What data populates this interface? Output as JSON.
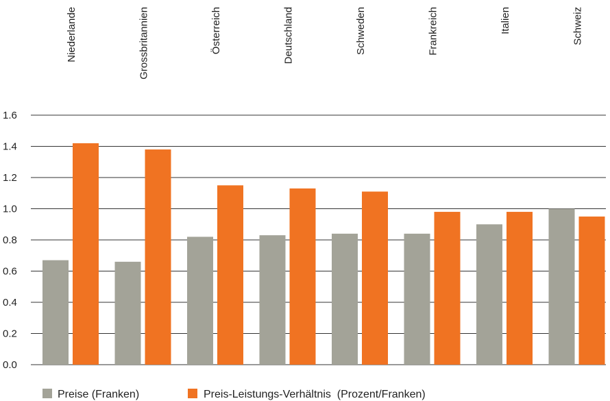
{
  "chart_data": {
    "type": "bar",
    "categories": [
      "Niederlande",
      "Grossbritannien",
      "Österreich",
      "Deutschland",
      "Schweden",
      "Frankreich",
      "Italien",
      "Schweiz"
    ],
    "series": [
      {
        "name": "Preise (Franken)",
        "color": "#a3a398",
        "values": [
          0.67,
          0.66,
          0.82,
          0.83,
          0.84,
          0.84,
          0.9,
          1.0
        ]
      },
      {
        "name": "Preis-Leistungs-Verhältnis  (Prozent/Franken)",
        "color": "#f07322",
        "values": [
          1.42,
          1.38,
          1.15,
          1.13,
          1.11,
          0.98,
          0.98,
          0.95
        ]
      }
    ],
    "yticks": [
      "0.0",
      "0.2",
      "0.4",
      "0.6",
      "0.8",
      "1.0",
      "1.2",
      "1.4",
      "1.6"
    ],
    "ylim": [
      0,
      1.6
    ],
    "grid": true,
    "legend_position": "bottom-left",
    "category_label_position": "top-rotated"
  }
}
